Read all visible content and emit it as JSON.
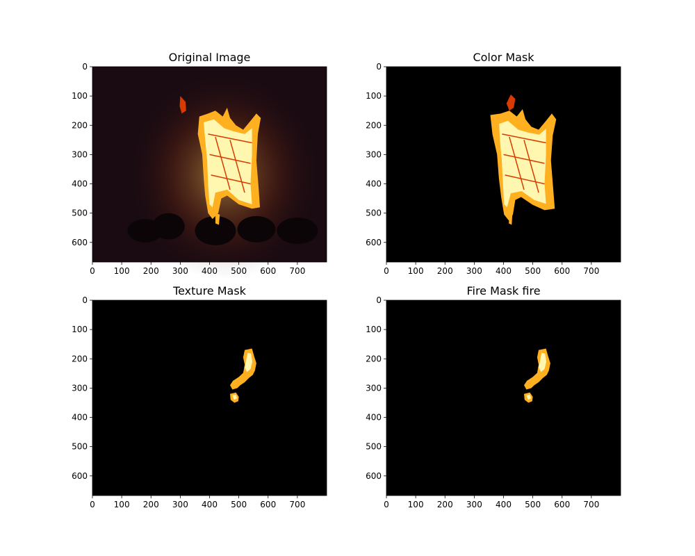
{
  "chart_data": [
    {
      "type": "image",
      "title": "Original Image",
      "xlim": [
        0,
        800
      ],
      "ylim": [
        667,
        0
      ],
      "xticks": [
        0,
        100,
        200,
        300,
        400,
        500,
        600,
        700
      ],
      "yticks": [
        0,
        100,
        200,
        300,
        400,
        500,
        600
      ],
      "background": "#1a0b12",
      "fire_extent": {
        "x": [
          360,
          570
        ],
        "y": [
          100,
          540
        ]
      }
    },
    {
      "type": "image",
      "title": "Color Mask",
      "xlim": [
        0,
        800
      ],
      "ylim": [
        667,
        0
      ],
      "xticks": [
        0,
        100,
        200,
        300,
        400,
        500,
        600,
        700
      ],
      "yticks": [
        0,
        100,
        200,
        300,
        400,
        500,
        600
      ],
      "background": "#000000",
      "fire_extent": {
        "x": [
          350,
          580
        ],
        "y": [
          95,
          540
        ]
      }
    },
    {
      "type": "image",
      "title": "Texture Mask",
      "xlim": [
        0,
        800
      ],
      "ylim": [
        667,
        0
      ],
      "xticks": [
        0,
        100,
        200,
        300,
        400,
        500,
        600,
        700
      ],
      "yticks": [
        0,
        100,
        200,
        300,
        400,
        500,
        600
      ],
      "background": "#000000",
      "fire_extent": {
        "x": [
          470,
          560
        ],
        "y": [
          165,
          350
        ]
      }
    },
    {
      "type": "image",
      "title": "Fire Mask fire",
      "xlim": [
        0,
        800
      ],
      "ylim": [
        667,
        0
      ],
      "xticks": [
        0,
        100,
        200,
        300,
        400,
        500,
        600,
        700
      ],
      "yticks": [
        0,
        100,
        200,
        300,
        400,
        500,
        600
      ],
      "background": "#000000",
      "fire_extent": {
        "x": [
          470,
          560
        ],
        "y": [
          165,
          350
        ]
      }
    }
  ],
  "colors": {
    "fire_core": "#fff6b0",
    "fire_mid": "#ffb020",
    "fire_edge": "#d83a00"
  }
}
